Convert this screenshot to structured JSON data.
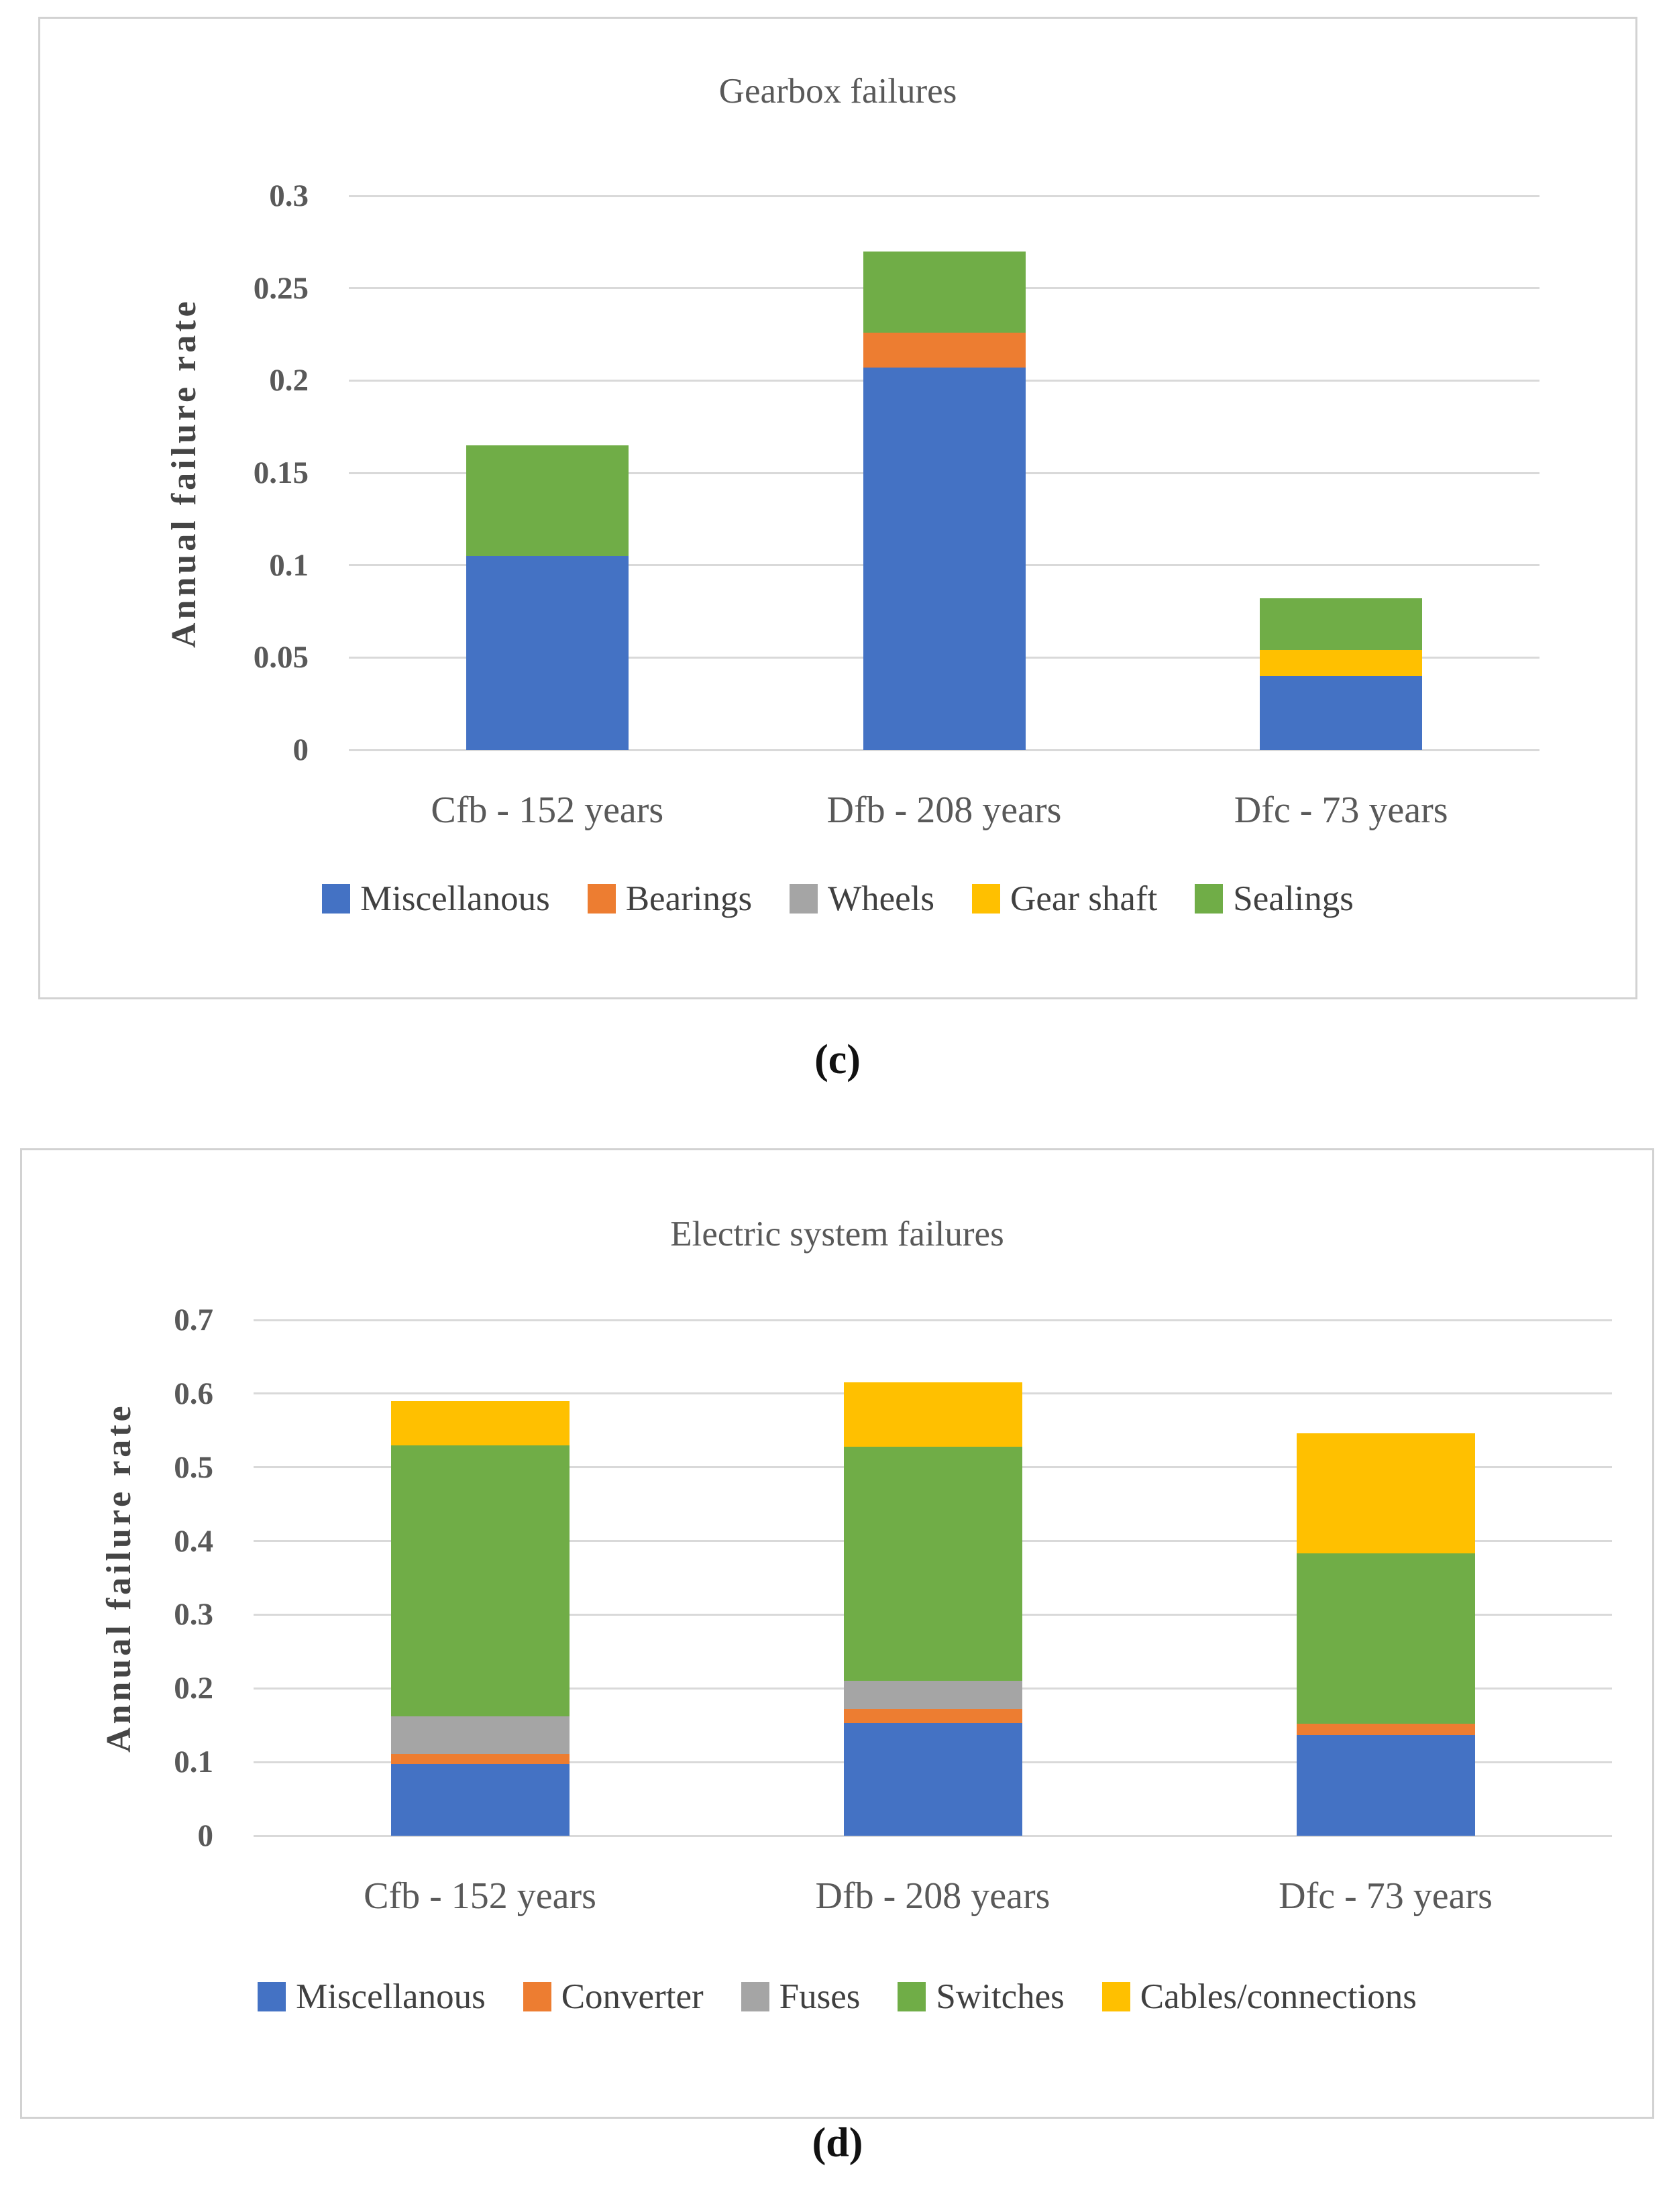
{
  "colors": {
    "blue": "#4472C4",
    "orange": "#ED7D31",
    "gray": "#A5A5A5",
    "yellow": "#FFC000",
    "green": "#70AD47",
    "gridline": "#D9D9D9",
    "panel_border": "#D2D2D2",
    "title_text": "#595959",
    "tick_text": "#595959",
    "legend_text": "#404040"
  },
  "figure": {
    "caption_c": "(c)",
    "caption_d": "(d)"
  },
  "chart_data": [
    {
      "id": "gearbox",
      "type": "bar",
      "stacked": true,
      "grid": true,
      "legend_position": "bottom",
      "title": "Gearbox failures",
      "ylabel": "Annual failure rate",
      "ylim": [
        0,
        0.3
      ],
      "ytick_step": 0.05,
      "yticks": [
        "0",
        "0.05",
        "0.1",
        "0.15",
        "0.2",
        "0.25",
        "0.3"
      ],
      "categories": [
        "Cfb - 152 years",
        "Dfb - 208 years",
        "Dfc - 73 years"
      ],
      "series": [
        {
          "name": "Miscellanous",
          "color_key": "blue",
          "values": [
            0.105,
            0.207,
            0.04
          ]
        },
        {
          "name": "Bearings",
          "color_key": "orange",
          "values": [
            0,
            0.019,
            0
          ]
        },
        {
          "name": "Wheels",
          "color_key": "gray",
          "values": [
            0,
            0,
            0
          ]
        },
        {
          "name": "Gear shaft",
          "color_key": "yellow",
          "values": [
            0,
            0,
            0.014
          ]
        },
        {
          "name": "Sealings",
          "color_key": "green",
          "values": [
            0.06,
            0.044,
            0.028
          ]
        }
      ],
      "totals": [
        0.165,
        0.27,
        0.082
      ],
      "caption": "(c)"
    },
    {
      "id": "electric",
      "type": "bar",
      "stacked": true,
      "grid": true,
      "legend_position": "bottom",
      "title": "Electric system failures",
      "ylabel": "Annual failure rate",
      "ylim": [
        0,
        0.7
      ],
      "ytick_step": 0.1,
      "yticks": [
        "0",
        "0.1",
        "0.2",
        "0.3",
        "0.4",
        "0.5",
        "0.6",
        "0.7"
      ],
      "categories": [
        "Cfb - 152 years",
        "Dfb - 208 years",
        "Dfc - 73 years"
      ],
      "series": [
        {
          "name": "Miscellanous",
          "color_key": "blue",
          "values": [
            0.097,
            0.153,
            0.137
          ]
        },
        {
          "name": "Converter",
          "color_key": "orange",
          "values": [
            0.014,
            0.019,
            0.015
          ]
        },
        {
          "name": "Fuses",
          "color_key": "gray",
          "values": [
            0.051,
            0.038,
            0
          ]
        },
        {
          "name": "Switches",
          "color_key": "green",
          "values": [
            0.368,
            0.318,
            0.231
          ]
        },
        {
          "name": "Cables/connections",
          "color_key": "yellow",
          "values": [
            0.06,
            0.087,
            0.163
          ]
        }
      ],
      "totals": [
        0.59,
        0.615,
        0.546
      ],
      "caption": "(d)"
    }
  ]
}
